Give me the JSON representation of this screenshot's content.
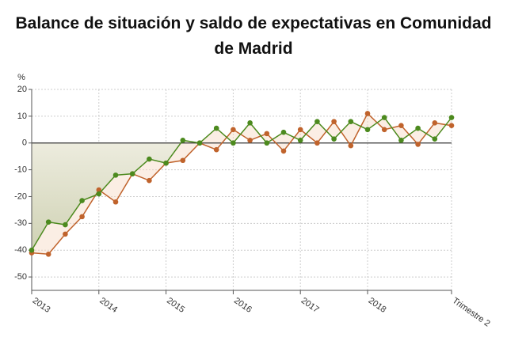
{
  "chart_data": {
    "type": "line",
    "title": "Balance de situación y saldo de expectativas en Comunidad de Madrid",
    "y_label": "%",
    "categories": [
      "2013",
      null,
      null,
      null,
      "2014",
      null,
      null,
      null,
      "2015",
      null,
      null,
      null,
      "2016",
      null,
      null,
      null,
      "2017",
      null,
      null,
      null,
      "2018",
      null,
      null,
      null,
      null,
      "Trimestre 2"
    ],
    "series": [
      {
        "color": "#4c8a1e",
        "values": [
          -40,
          -29.5,
          -30.5,
          -21.5,
          -19,
          -12,
          -11.5,
          -6,
          -7.5,
          1,
          0,
          5.5,
          0,
          7.5,
          0,
          4,
          1,
          8,
          1.5,
          8,
          5,
          9.5,
          1,
          5.5,
          1.5,
          9.5
        ]
      },
      {
        "color": "#c0632c",
        "values": [
          -41,
          -41.5,
          -34,
          -27.5,
          -17.5,
          -22,
          -11.5,
          -14,
          -7.5,
          -6.5,
          0,
          -2.5,
          5,
          1,
          3.5,
          -3,
          5,
          0,
          8,
          -1,
          11,
          5,
          6.5,
          -0.5,
          7.5,
          6.5
        ]
      }
    ],
    "ylim": [
      -55,
      20
    ],
    "yticks": [
      20,
      10,
      0,
      -10,
      -20,
      -30,
      -40,
      -50
    ],
    "grid": true
  }
}
